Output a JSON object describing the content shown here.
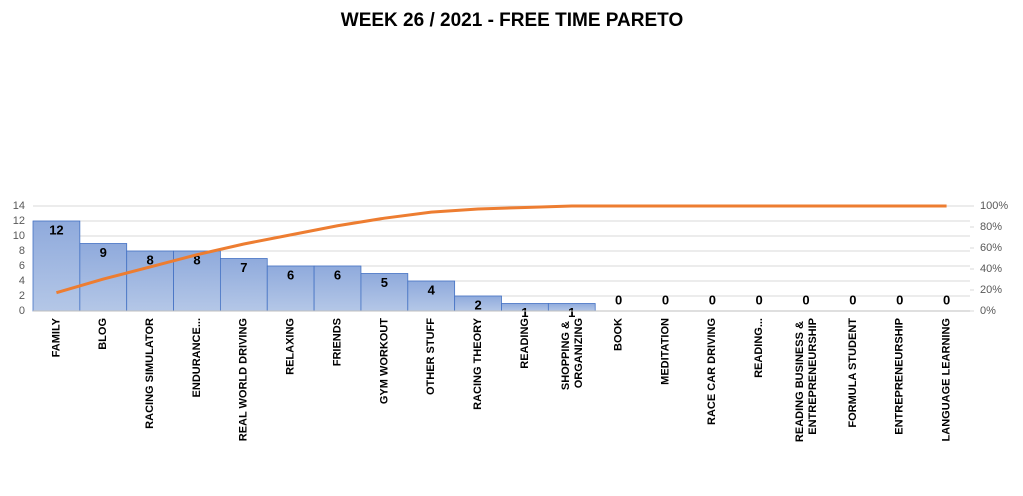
{
  "chart_data": {
    "type": "pareto",
    "title": "WEEK 26 / 2021 - FREE TIME PARETO",
    "categories": [
      "FAMILY",
      "BLOG",
      "RACING SIMULATOR",
      "ENDURANCE...",
      "REAL WORLD DRIVING",
      "RELAXING",
      "FRIENDS",
      "GYM WORKOUT",
      "OTHER STUFF",
      "RACING THEORY",
      "READING",
      "SHOPPING & ORGANIZING",
      "BOOK",
      "MEDITATION",
      "RACE CAR DRIVING",
      "READING...",
      "READING BUSINESS & ENTREPRENEURSHIP",
      "FORMULA STUDENT",
      "ENTREPRENEURSHIP",
      "LANGUAGE LEARNING"
    ],
    "series": [
      {
        "color": "#8faadc",
        "values": [
          12,
          9,
          8,
          8,
          7,
          6,
          6,
          5,
          4,
          2,
          1,
          1,
          0,
          0,
          0,
          0,
          0,
          0,
          0,
          0
        ]
      },
      {
        "color": "#ed7d31",
        "axis": "y2",
        "values": [
          17.4,
          30.4,
          42.0,
          53.6,
          63.8,
          72.5,
          81.2,
          88.4,
          94.2,
          97.1,
          98.6,
          100,
          100,
          100,
          100,
          100,
          100,
          100,
          100,
          100
        ]
      }
    ],
    "ylim": [
      0,
      14
    ],
    "yticks": [
      0,
      2,
      4,
      6,
      8,
      10,
      12,
      14
    ],
    "y2lim": [
      0,
      100
    ],
    "y2ticks": [
      {
        "value": 0,
        "label": "0%"
      },
      {
        "value": 20,
        "label": "20%"
      },
      {
        "value": 40,
        "label": "40%"
      },
      {
        "value": 60,
        "label": "60%"
      },
      {
        "value": 80,
        "label": "80%"
      },
      {
        "value": 100,
        "label": "100%"
      }
    ],
    "grid": true
  }
}
